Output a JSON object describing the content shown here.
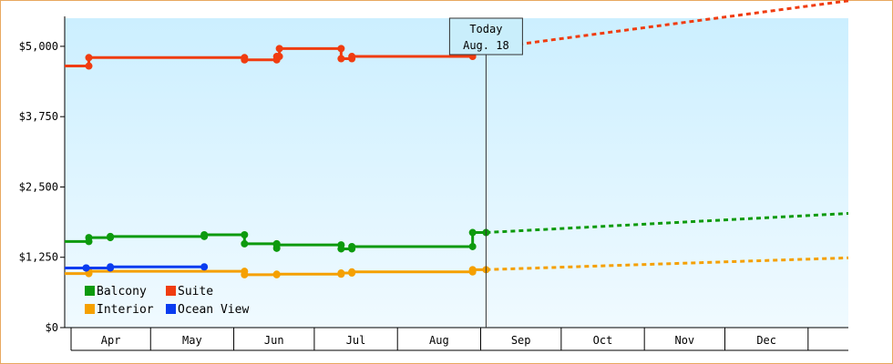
{
  "chart_data": {
    "type": "line",
    "title": "",
    "xlabel": "",
    "ylabel": "",
    "ylim": [
      0,
      5500
    ],
    "y_ticks": [
      {
        "value": 0,
        "label": "$0"
      },
      {
        "value": 1250,
        "label": "$1,250"
      },
      {
        "value": 2500,
        "label": "$2,500"
      },
      {
        "value": 3750,
        "label": "$3,750"
      },
      {
        "value": 5000,
        "label": "$5,000"
      }
    ],
    "months": [
      {
        "label": "Apr",
        "start": "2024-03-16",
        "end": "2024-04-15"
      },
      {
        "label": "May",
        "start": "2024-04-15",
        "end": "2024-05-16"
      },
      {
        "label": "Jun",
        "start": "2024-05-16",
        "end": "2024-06-15"
      },
      {
        "label": "Jul",
        "start": "2024-06-15",
        "end": "2024-07-16"
      },
      {
        "label": "Aug",
        "start": "2024-07-16",
        "end": "2024-08-16"
      },
      {
        "label": "Sep",
        "start": "2024-08-16",
        "end": "2024-09-15"
      },
      {
        "label": "Oct",
        "start": "2024-09-15",
        "end": "2024-10-16"
      },
      {
        "label": "Nov",
        "start": "2024-10-16",
        "end": "2024-11-15"
      },
      {
        "label": "Dec",
        "start": "2024-11-15",
        "end": "2024-12-16"
      }
    ],
    "x_range": [
      "2024-03-14",
      "2024-12-31"
    ],
    "today": {
      "line1": "Today",
      "line2": "Aug. 18",
      "date": "2024-08-18"
    },
    "grid": false,
    "legend_position": "bottom-left",
    "background": {
      "top_color": "#ccefff",
      "bottom_color": "#f0faff"
    },
    "series": [
      {
        "name": "Balcony",
        "color": "#0d9a0d",
        "points": [
          {
            "x": "2024-03-14",
            "y": 1530
          },
          {
            "x": "2024-03-23",
            "y": 1530
          },
          {
            "x": "2024-03-23",
            "y": 1600
          },
          {
            "x": "2024-03-31",
            "y": 1600
          },
          {
            "x": "2024-03-31",
            "y": 1620
          },
          {
            "x": "2024-05-05",
            "y": 1620
          },
          {
            "x": "2024-05-05",
            "y": 1650
          },
          {
            "x": "2024-05-20",
            "y": 1650
          },
          {
            "x": "2024-05-20",
            "y": 1490
          },
          {
            "x": "2024-06-01",
            "y": 1490
          },
          {
            "x": "2024-06-01",
            "y": 1410
          },
          {
            "x": "2024-06-01",
            "y": 1470
          },
          {
            "x": "2024-06-25",
            "y": 1470
          },
          {
            "x": "2024-06-25",
            "y": 1400
          },
          {
            "x": "2024-06-29",
            "y": 1400
          },
          {
            "x": "2024-06-29",
            "y": 1440
          },
          {
            "x": "2024-08-13",
            "y": 1440
          },
          {
            "x": "2024-08-13",
            "y": 1690
          },
          {
            "x": "2024-08-18",
            "y": 1690
          }
        ],
        "forecast": [
          {
            "x": "2024-08-18",
            "y": 1690
          },
          {
            "x": "2024-12-31",
            "y": 2030
          }
        ]
      },
      {
        "name": "Suite",
        "color": "#f03c10",
        "points": [
          {
            "x": "2024-03-14",
            "y": 4650
          },
          {
            "x": "2024-03-23",
            "y": 4650
          },
          {
            "x": "2024-03-23",
            "y": 4800
          },
          {
            "x": "2024-05-20",
            "y": 4800
          },
          {
            "x": "2024-05-20",
            "y": 4760
          },
          {
            "x": "2024-06-01",
            "y": 4760
          },
          {
            "x": "2024-06-01",
            "y": 4820
          },
          {
            "x": "2024-06-02",
            "y": 4820
          },
          {
            "x": "2024-06-02",
            "y": 4960
          },
          {
            "x": "2024-06-25",
            "y": 4960
          },
          {
            "x": "2024-06-25",
            "y": 4780
          },
          {
            "x": "2024-06-29",
            "y": 4780
          },
          {
            "x": "2024-06-29",
            "y": 4820
          },
          {
            "x": "2024-08-13",
            "y": 4820
          },
          {
            "x": "2024-08-13",
            "y": 4960
          },
          {
            "x": "2024-08-18",
            "y": 4960
          }
        ],
        "forecast": [
          {
            "x": "2024-08-18",
            "y": 4960
          },
          {
            "x": "2024-12-31",
            "y": 5810
          }
        ]
      },
      {
        "name": "Interior",
        "color": "#f5a000",
        "points": [
          {
            "x": "2024-03-14",
            "y": 960
          },
          {
            "x": "2024-03-23",
            "y": 960
          },
          {
            "x": "2024-03-23",
            "y": 1000
          },
          {
            "x": "2024-05-20",
            "y": 1000
          },
          {
            "x": "2024-05-20",
            "y": 940
          },
          {
            "x": "2024-06-01",
            "y": 940
          },
          {
            "x": "2024-06-01",
            "y": 950
          },
          {
            "x": "2024-06-25",
            "y": 950
          },
          {
            "x": "2024-06-25",
            "y": 970
          },
          {
            "x": "2024-06-29",
            "y": 970
          },
          {
            "x": "2024-06-29",
            "y": 990
          },
          {
            "x": "2024-08-13",
            "y": 990
          },
          {
            "x": "2024-08-13",
            "y": 1030
          },
          {
            "x": "2024-08-18",
            "y": 1030
          }
        ],
        "forecast": [
          {
            "x": "2024-08-18",
            "y": 1030
          },
          {
            "x": "2024-12-31",
            "y": 1240
          }
        ]
      },
      {
        "name": "Ocean View",
        "color": "#0a3cf0",
        "points": [
          {
            "x": "2024-03-14",
            "y": 1060
          },
          {
            "x": "2024-03-22",
            "y": 1060
          },
          {
            "x": "2024-03-22",
            "y": 1060
          },
          {
            "x": "2024-03-31",
            "y": 1060
          },
          {
            "x": "2024-03-31",
            "y": 1080
          },
          {
            "x": "2024-05-05",
            "y": 1080
          }
        ],
        "forecast": []
      }
    ]
  }
}
